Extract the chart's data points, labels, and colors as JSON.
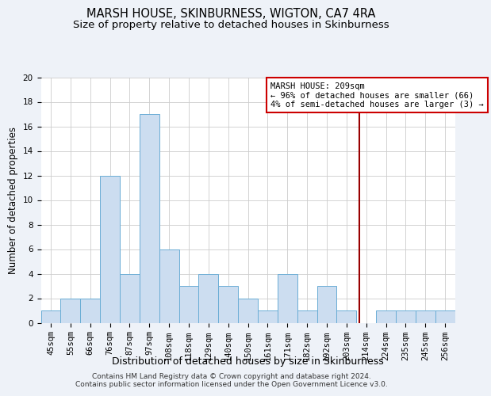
{
  "title": "MARSH HOUSE, SKINBURNESS, WIGTON, CA7 4RA",
  "subtitle": "Size of property relative to detached houses in Skinburness",
  "xlabel": "Distribution of detached houses by size in Skinburness",
  "ylabel": "Number of detached properties",
  "bins": [
    "45sqm",
    "55sqm",
    "66sqm",
    "76sqm",
    "87sqm",
    "97sqm",
    "108sqm",
    "118sqm",
    "129sqm",
    "140sqm",
    "150sqm",
    "161sqm",
    "171sqm",
    "182sqm",
    "192sqm",
    "203sqm",
    "214sqm",
    "224sqm",
    "235sqm",
    "245sqm",
    "256sqm"
  ],
  "values": [
    1,
    2,
    2,
    12,
    4,
    17,
    6,
    3,
    4,
    3,
    2,
    1,
    4,
    1,
    3,
    1,
    0,
    1,
    1,
    1,
    1
  ],
  "bar_color": "#ccddf0",
  "bar_edge_color": "#6aadd5",
  "grid_color": "#cccccc",
  "bg_color": "#eef2f8",
  "plot_bg_color": "#ffffff",
  "red_line_x": 15.65,
  "annotation_text": "MARSH HOUSE: 209sqm\n← 96% of detached houses are smaller (66)\n4% of semi-detached houses are larger (3) →",
  "annotation_box_color": "#ffffff",
  "annotation_box_edge": "#cc0000",
  "footer": "Contains HM Land Registry data © Crown copyright and database right 2024.\nContains public sector information licensed under the Open Government Licence v3.0.",
  "title_fontsize": 10.5,
  "subtitle_fontsize": 9.5,
  "ylabel_fontsize": 8.5,
  "xlabel_fontsize": 9,
  "tick_fontsize": 7.5,
  "annotation_fontsize": 7.5,
  "footer_fontsize": 6.5,
  "ylim": [
    0,
    20
  ]
}
